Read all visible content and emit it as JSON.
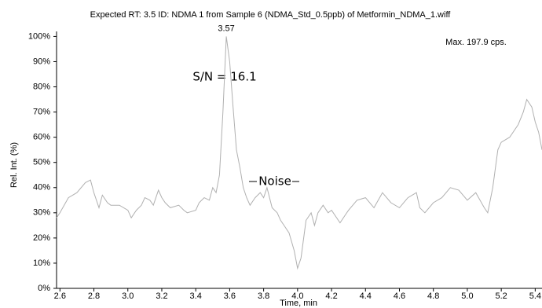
{
  "chart_data": {
    "type": "line",
    "title": "Expected RT: 3.5 ID: NDMA 1 from Sample 6 (NDMA_Std_0.5ppb) of Metformin_NDMA_1.wiff",
    "x_label": "Time, min",
    "y_label": "Rel. Int. (%)",
    "annotations": {
      "peak": "3.57",
      "max": "Max. 197.9 cps.",
      "sn": "S/N = 16.1",
      "noise": "Noise"
    },
    "x": [
      2.58,
      2.6,
      2.65,
      2.7,
      2.75,
      2.78,
      2.8,
      2.83,
      2.85,
      2.88,
      2.9,
      2.95,
      3.0,
      3.02,
      3.05,
      3.08,
      3.1,
      3.13,
      3.15,
      3.18,
      3.2,
      3.22,
      3.25,
      3.3,
      3.33,
      3.35,
      3.4,
      3.42,
      3.45,
      3.48,
      3.5,
      3.52,
      3.54,
      3.56,
      3.58,
      3.6,
      3.62,
      3.64,
      3.66,
      3.68,
      3.7,
      3.72,
      3.75,
      3.78,
      3.8,
      3.82,
      3.85,
      3.88,
      3.9,
      3.92,
      3.95,
      3.98,
      4.0,
      4.02,
      4.05,
      4.08,
      4.1,
      4.12,
      4.15,
      4.18,
      4.2,
      4.25,
      4.28,
      4.3,
      4.35,
      4.4,
      4.45,
      4.5,
      4.55,
      4.6,
      4.65,
      4.7,
      4.72,
      4.75,
      4.8,
      4.85,
      4.9,
      4.95,
      5.0,
      5.05,
      5.1,
      5.12,
      5.15,
      5.18,
      5.2,
      5.25,
      5.3,
      5.33,
      5.35,
      5.38,
      5.4,
      5.42,
      5.44
    ],
    "series": [
      {
        "name": "NDMA 1",
        "color": "#b0b0b0",
        "values": [
          28,
          30,
          36,
          38,
          42,
          43,
          38,
          32,
          37,
          34,
          33,
          33,
          31,
          28,
          31,
          33,
          36,
          35,
          33,
          39,
          36,
          34,
          32,
          33,
          31,
          30,
          31,
          34,
          36,
          35,
          40,
          38,
          45,
          70,
          100,
          90,
          72,
          55,
          48,
          40,
          36,
          33,
          36,
          38,
          36,
          40,
          32,
          30,
          27,
          25,
          22,
          15,
          8,
          12,
          27,
          30,
          25,
          30,
          33,
          30,
          31,
          26,
          29,
          31,
          35,
          36,
          32,
          38,
          34,
          32,
          36,
          38,
          32,
          30,
          34,
          36,
          40,
          39,
          35,
          38,
          32,
          30,
          40,
          55,
          58,
          60,
          65,
          70,
          75,
          72,
          66,
          62,
          55
        ]
      }
    ],
    "xlim": [
      2.58,
      5.44
    ],
    "ylim": [
      0,
      102
    ],
    "xticks": [
      2.6,
      2.8,
      {
        "value": 3.0,
        "label": "3.0"
      },
      3.2,
      3.4,
      3.6,
      3.8,
      {
        "value": 4.0,
        "label": "4.0"
      },
      4.2,
      4.4,
      4.6,
      4.8,
      {
        "value": 5.0,
        "label": "5.0"
      },
      5.2,
      5.4
    ],
    "yticks": [
      {
        "value": 0,
        "label": "0%"
      },
      {
        "value": 10,
        "label": "10%"
      },
      {
        "value": 20,
        "label": "20%"
      },
      {
        "value": 30,
        "label": "30%"
      },
      {
        "value": 40,
        "label": "40%"
      },
      {
        "value": 50,
        "label": "50%"
      },
      {
        "value": 60,
        "label": "60%"
      },
      {
        "value": 70,
        "label": "70%"
      },
      {
        "value": 80,
        "label": "80%"
      },
      {
        "value": 90,
        "label": "90%"
      },
      {
        "value": 100,
        "label": "100%"
      }
    ]
  }
}
